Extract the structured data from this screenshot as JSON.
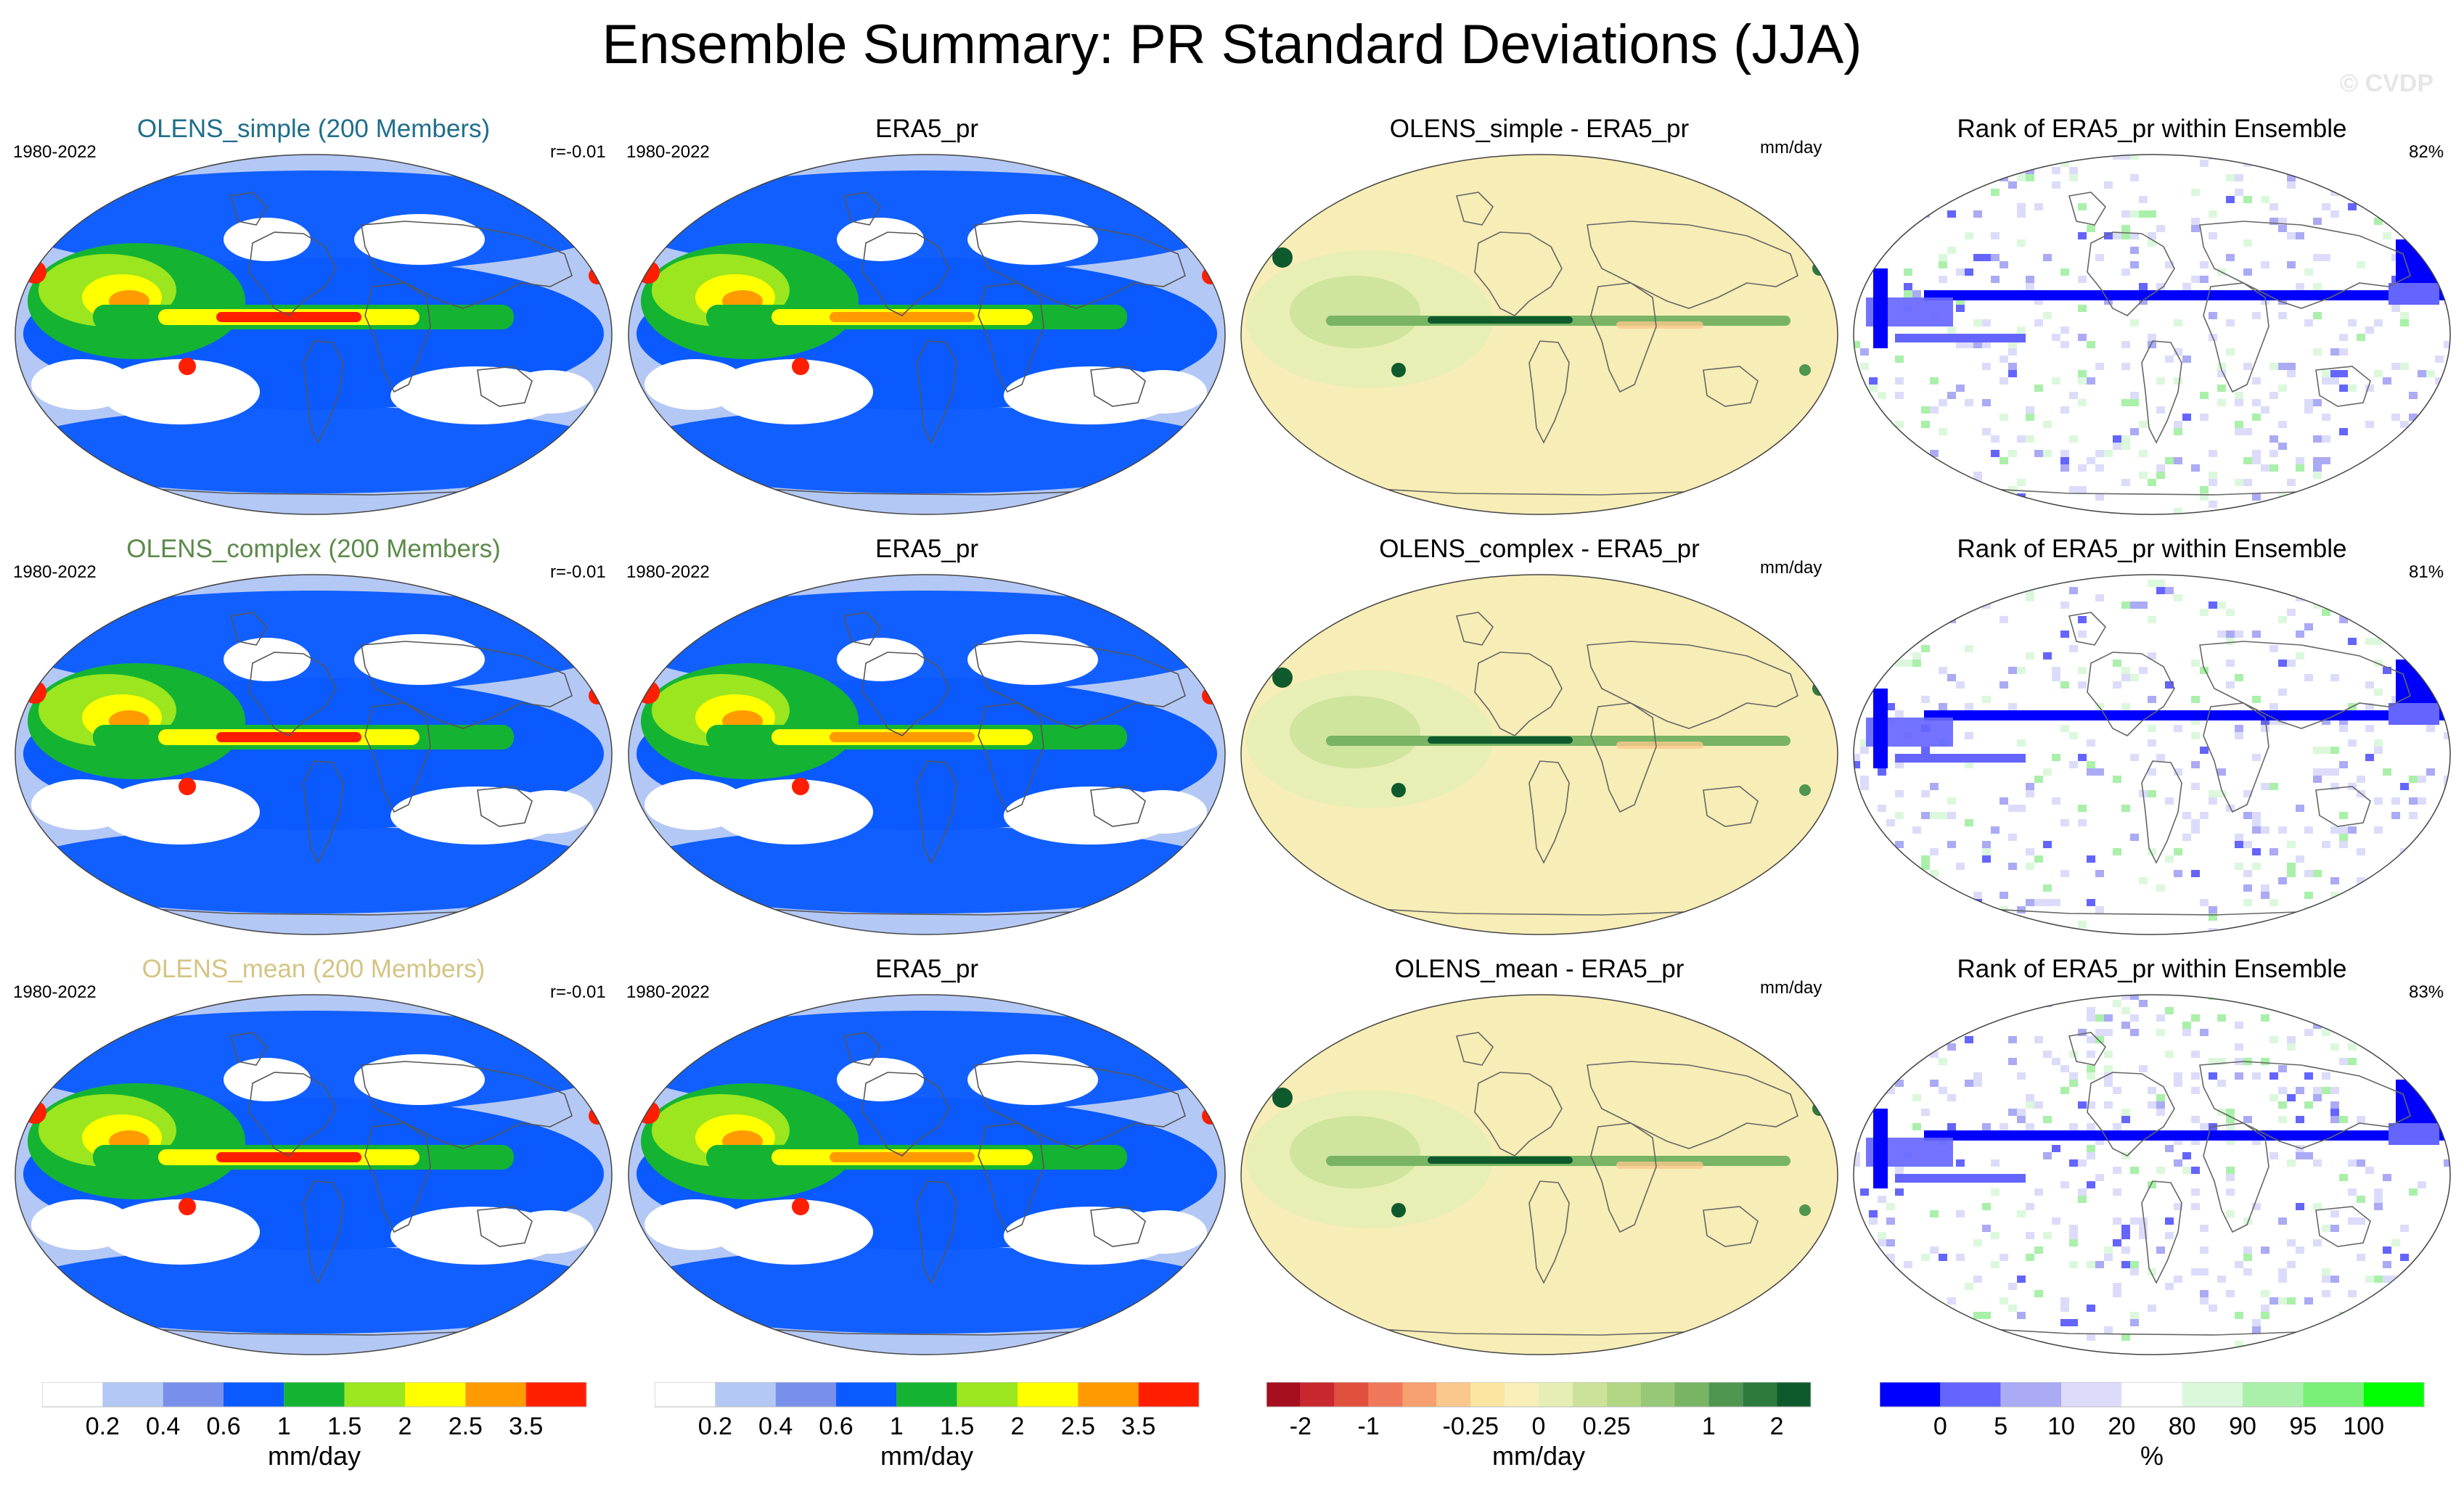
{
  "title": "Ensemble Summary: PR Standard Deviations (JJA)",
  "watermark": "© CVDP",
  "rows": [
    {
      "model": "OLENS_simple (200 Members)",
      "model_color": "#1f6e8c",
      "period": "1980-2022",
      "corr": "r=-0.01",
      "obs_title": "ERA5_pr",
      "obs_period": "1980-2022",
      "diff_title": "OLENS_simple - ERA5_pr",
      "diff_units": "mm/day",
      "rank_title": "Rank of ERA5_pr within Ensemble",
      "rank_pct": "82%"
    },
    {
      "model": "OLENS_complex (200 Members)",
      "model_color": "#5b8a4a",
      "period": "1980-2022",
      "corr": "r=-0.01",
      "obs_title": "ERA5_pr",
      "obs_period": "1980-2022",
      "diff_title": "OLENS_complex - ERA5_pr",
      "diff_units": "mm/day",
      "rank_title": "Rank of ERA5_pr within Ensemble",
      "rank_pct": "81%"
    },
    {
      "model": "OLENS_mean (200 Members)",
      "model_color": "#d4c483",
      "period": "1980-2022",
      "corr": "r=-0.01",
      "obs_title": "ERA5_pr",
      "obs_period": "1980-2022",
      "diff_title": "OLENS_mean - ERA5_pr",
      "diff_units": "mm/day",
      "rank_title": "Rank of ERA5_pr within Ensemble",
      "rank_pct": "83%"
    }
  ],
  "colorbars": {
    "stddev": {
      "colors": [
        "#ffffff",
        "#b4c8f5",
        "#7890eb",
        "#0a5aff",
        "#14b432",
        "#9be61e",
        "#ffff00",
        "#ff9b00",
        "#ff1e00"
      ],
      "labels": [
        "0.2",
        "0.4",
        "0.6",
        "1",
        "1.5",
        "2",
        "2.5",
        "3.5"
      ],
      "units": "mm/day"
    },
    "diff": {
      "colors": [
        "#a50f1e",
        "#c8282d",
        "#e1503c",
        "#f0785a",
        "#f5a06e",
        "#fac88c",
        "#fae6a0",
        "#f8eeb8",
        "#e6eeb4",
        "#cce29a",
        "#b2d684",
        "#96c878",
        "#78b464",
        "#4f9650",
        "#2d7a3c",
        "#0f5a2d"
      ],
      "labels": [
        "-2",
        "-1",
        "-0.25",
        "0",
        "0.25",
        "1",
        "2"
      ],
      "units": "mm/day"
    },
    "rank": {
      "colors": [
        "#0000ff",
        "#6464ff",
        "#aaaaf5",
        "#dcdcfa",
        "#ffffff",
        "#dcf8dc",
        "#aaf0aa",
        "#78f078",
        "#00ff00"
      ],
      "labels": [
        "0",
        "5",
        "10",
        "20",
        "80",
        "90",
        "95",
        "100"
      ],
      "units": "%"
    }
  },
  "chart_data": {
    "type": "heatmap",
    "title": "Ensemble Summary: PR Standard Deviations (JJA)",
    "projection": "global map (Robinson-like)",
    "panels": [
      {
        "row": 1,
        "col": 1,
        "title": "OLENS_simple (200 Members)",
        "variable": "PR std dev",
        "units": "mm/day",
        "period": "1980-2022",
        "pattern_corr": -0.01
      },
      {
        "row": 1,
        "col": 2,
        "title": "ERA5_pr",
        "variable": "PR std dev",
        "units": "mm/day",
        "period": "1980-2022"
      },
      {
        "row": 1,
        "col": 3,
        "title": "OLENS_simple - ERA5_pr",
        "variable": "difference",
        "units": "mm/day"
      },
      {
        "row": 1,
        "col": 4,
        "title": "Rank of ERA5_pr within Ensemble",
        "units": "%",
        "pct_within": 82
      },
      {
        "row": 2,
        "col": 1,
        "title": "OLENS_complex (200 Members)",
        "variable": "PR std dev",
        "units": "mm/day",
        "period": "1980-2022",
        "pattern_corr": -0.01
      },
      {
        "row": 2,
        "col": 2,
        "title": "ERA5_pr",
        "variable": "PR std dev",
        "units": "mm/day",
        "period": "1980-2022"
      },
      {
        "row": 2,
        "col": 3,
        "title": "OLENS_complex - ERA5_pr",
        "variable": "difference",
        "units": "mm/day"
      },
      {
        "row": 2,
        "col": 4,
        "title": "Rank of ERA5_pr within Ensemble",
        "units": "%",
        "pct_within": 81
      },
      {
        "row": 3,
        "col": 1,
        "title": "OLENS_mean (200 Members)",
        "variable": "PR std dev",
        "units": "mm/day",
        "period": "1980-2022",
        "pattern_corr": -0.01
      },
      {
        "row": 3,
        "col": 2,
        "title": "ERA5_pr",
        "variable": "PR std dev",
        "units": "mm/day",
        "period": "1980-2022"
      },
      {
        "row": 3,
        "col": 3,
        "title": "OLENS_mean - ERA5_pr",
        "variable": "difference",
        "units": "mm/day"
      },
      {
        "row": 3,
        "col": 4,
        "title": "Rank of ERA5_pr within Ensemble",
        "units": "%",
        "pct_within": 83
      }
    ],
    "stddev_levels": [
      0.2,
      0.4,
      0.6,
      1,
      1.5,
      2,
      2.5,
      3.5
    ],
    "diff_levels": [
      -2,
      -1,
      -0.25,
      0,
      0.25,
      1,
      2
    ],
    "rank_levels": [
      0,
      5,
      10,
      20,
      80,
      90,
      95,
      100
    ]
  }
}
